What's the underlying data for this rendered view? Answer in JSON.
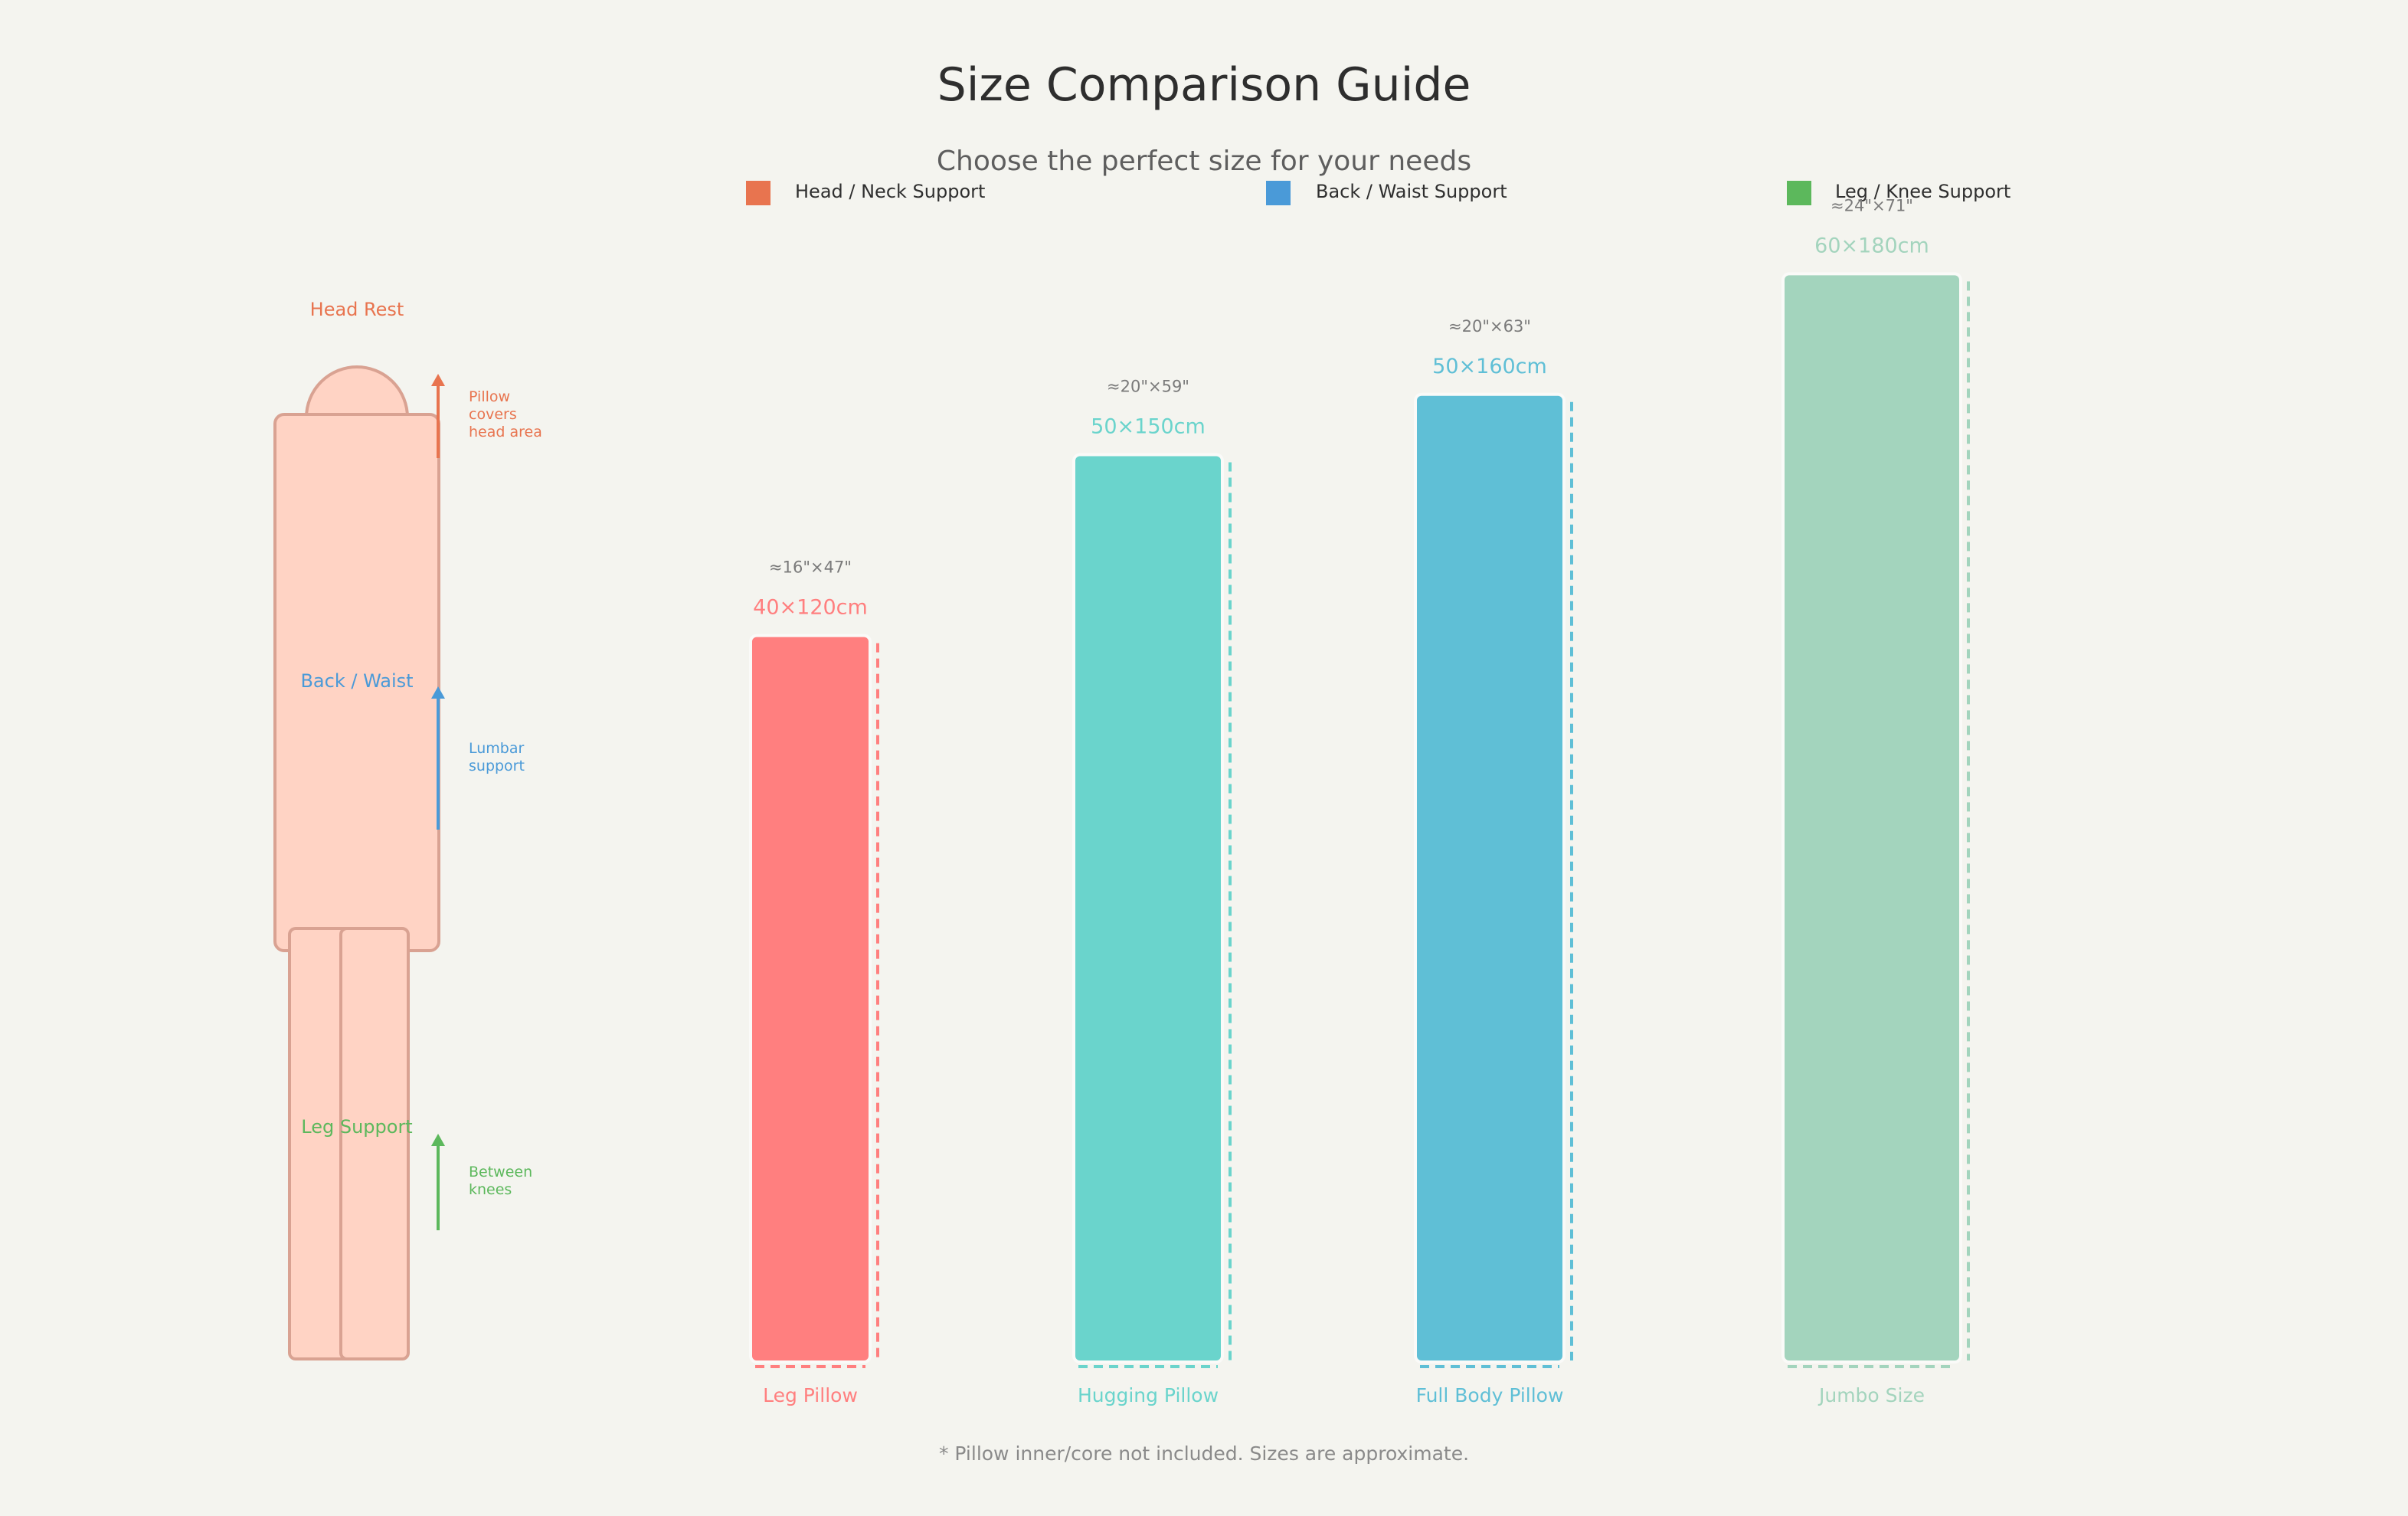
{
  "header": {
    "title": "Size Comparison Guide",
    "subtitle": "Choose the perfect size for your needs"
  },
  "legend": [
    {
      "label": "Head / Neck Support",
      "color": "#e8744f"
    },
    {
      "label": "Back / Waist Support",
      "color": "#4a9ad8"
    },
    {
      "label": "Leg / Knee Support",
      "color": "#5cb85c"
    }
  ],
  "figure": {
    "zones": [
      {
        "label": "Head Rest",
        "color": "#e8744f",
        "note": [
          "Pillow",
          "covers",
          "head area"
        ]
      },
      {
        "label": "Back / Waist",
        "color": "#4a9ad8",
        "note": [
          "Lumbar",
          "support"
        ]
      },
      {
        "label": "Leg Support",
        "color": "#5cb85c",
        "note": [
          "Between",
          "knees"
        ]
      }
    ],
    "body_fill": "#ffd3c4",
    "body_stroke": "#d9a292"
  },
  "chart_data": {
    "type": "bar",
    "categories": [
      "Leg Pillow",
      "Hugging Pillow",
      "Full Body Pillow",
      "Jumbo Size"
    ],
    "items": [
      {
        "name": "Leg Pillow",
        "size": "40×120cm",
        "inches": "≈16\"×47\"",
        "width_cm": 40,
        "length_cm": 120,
        "color": "#ff7f7f"
      },
      {
        "name": "Hugging Pillow",
        "size": "50×150cm",
        "inches": "≈20\"×59\"",
        "width_cm": 50,
        "length_cm": 150,
        "color": "#6ad4cc"
      },
      {
        "name": "Full Body Pillow",
        "size": "50×160cm",
        "inches": "≈20\"×63\"",
        "width_cm": 50,
        "length_cm": 160,
        "color": "#5fbfd6"
      },
      {
        "name": "Jumbo Size",
        "size": "60×180cm",
        "inches": "≈24\"×71\"",
        "width_cm": 60,
        "length_cm": 180,
        "color": "#a3d4bd"
      }
    ]
  },
  "footnote": "* Pillow inner/core not included. Sizes are approximate."
}
